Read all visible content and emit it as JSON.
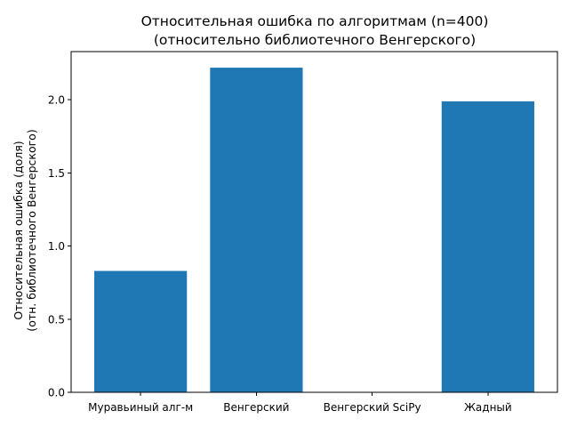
{
  "chart_data": {
    "type": "bar",
    "title": "Относительная ошибка по алгоритмам (n=400)",
    "subtitle": "(относительно библиотечного Венгерского)",
    "xlabel": "",
    "ylabel": "Относительная ошибка (доля)",
    "ylabel_line2": "(отн. библиотечного Венгерского)",
    "categories": [
      "Муравьиный алг-м",
      "Венгерский",
      "Венгерский SciPy",
      "Жадный"
    ],
    "values": [
      0.83,
      2.22,
      0.0,
      1.99
    ],
    "ylim": [
      0,
      2.33
    ],
    "yticks": [
      "0.0",
      "0.5",
      "1.0",
      "1.5",
      "2.0"
    ],
    "grid": false,
    "bar_color": "#1f77b4"
  }
}
